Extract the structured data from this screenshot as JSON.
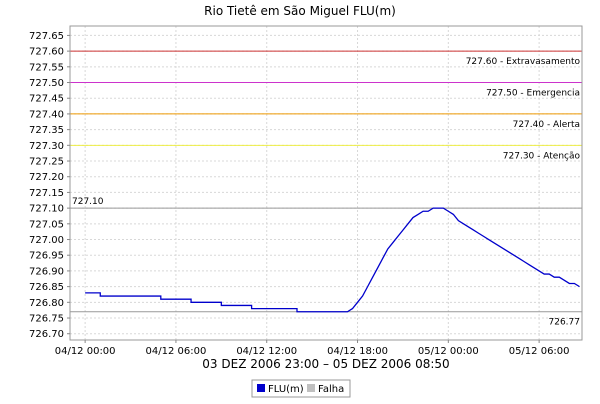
{
  "chart_data": {
    "type": "line",
    "title": "Rio Tietê em São Miguel FLU(m)",
    "xlabel": "03 DEZ 2006 23:00 – 05 DEZ 2006 08:50",
    "ylabel": "",
    "ylim": [
      726.68,
      727.68
    ],
    "yticks": [
      "726.70",
      "726.75",
      "726.80",
      "726.85",
      "726.90",
      "726.95",
      "727.00",
      "727.05",
      "727.10",
      "727.15",
      "727.20",
      "727.25",
      "727.30",
      "727.35",
      "727.40",
      "727.45",
      "727.50",
      "727.55",
      "727.60",
      "727.65"
    ],
    "xlim": [
      "2006-12-03 23:00",
      "2006-12-05 08:50"
    ],
    "xticks": [
      {
        "t": "2006-12-04 00:00",
        "label": "04/12 00:00"
      },
      {
        "t": "2006-12-04 06:00",
        "label": "04/12 06:00"
      },
      {
        "t": "2006-12-04 12:00",
        "label": "04/12 12:00"
      },
      {
        "t": "2006-12-04 18:00",
        "label": "04/12 18:00"
      },
      {
        "t": "2006-12-05 00:00",
        "label": "05/12 00:00"
      },
      {
        "t": "2006-12-05 06:00",
        "label": "05/12 06:00"
      }
    ],
    "grid": true,
    "legend_position": "bottom",
    "legend": [
      {
        "name": "FLU(m)",
        "color": "#0000cc"
      },
      {
        "name": "Falha",
        "color": "#c0c0c0"
      }
    ],
    "thresholds": [
      {
        "value": 727.6,
        "label": "727.60 - Extravasamento",
        "color": "#cc3333"
      },
      {
        "value": 727.5,
        "label": "727.50 - Emergencia",
        "color": "#cc33cc"
      },
      {
        "value": 727.4,
        "label": "727.40 - Alerta",
        "color": "#ee9900"
      },
      {
        "value": 727.3,
        "label": "727.30 - Atenção",
        "color": "#eeee44"
      }
    ],
    "reference_lines": [
      {
        "value": 727.1,
        "label": "727.10",
        "color": "#999999",
        "label_side": "left"
      },
      {
        "value": 726.77,
        "label": "726.77",
        "color": "#999999",
        "label_side": "right"
      }
    ],
    "series": [
      {
        "name": "FLU(m)",
        "color": "#0000cc",
        "points": [
          [
            "2006-12-04 00:00",
            726.83
          ],
          [
            "2006-12-04 01:00",
            726.83
          ],
          [
            "2006-12-04 01:00",
            726.82
          ],
          [
            "2006-12-04 05:00",
            726.82
          ],
          [
            "2006-12-04 05:00",
            726.81
          ],
          [
            "2006-12-04 06:00",
            726.81
          ],
          [
            "2006-12-04 06:00",
            726.81
          ],
          [
            "2006-12-04 07:00",
            726.81
          ],
          [
            "2006-12-04 07:00",
            726.8
          ],
          [
            "2006-12-04 09:00",
            726.8
          ],
          [
            "2006-12-04 09:00",
            726.79
          ],
          [
            "2006-12-04 11:00",
            726.79
          ],
          [
            "2006-12-04 11:00",
            726.78
          ],
          [
            "2006-12-04 14:00",
            726.78
          ],
          [
            "2006-12-04 14:00",
            726.77
          ],
          [
            "2006-12-04 17:20",
            726.77
          ],
          [
            "2006-12-04 17:40",
            726.78
          ],
          [
            "2006-12-04 18:00",
            726.8
          ],
          [
            "2006-12-04 18:20",
            726.82
          ],
          [
            "2006-12-04 18:40",
            726.85
          ],
          [
            "2006-12-04 19:00",
            726.88
          ],
          [
            "2006-12-04 19:20",
            726.91
          ],
          [
            "2006-12-04 19:40",
            726.94
          ],
          [
            "2006-12-04 20:00",
            726.97
          ],
          [
            "2006-12-04 20:20",
            726.99
          ],
          [
            "2006-12-04 20:40",
            727.01
          ],
          [
            "2006-12-04 21:00",
            727.03
          ],
          [
            "2006-12-04 21:20",
            727.05
          ],
          [
            "2006-12-04 21:40",
            727.07
          ],
          [
            "2006-12-04 22:00",
            727.08
          ],
          [
            "2006-12-04 22:20",
            727.09
          ],
          [
            "2006-12-04 22:40",
            727.09
          ],
          [
            "2006-12-04 23:00",
            727.1
          ],
          [
            "2006-12-04 23:20",
            727.1
          ],
          [
            "2006-12-04 23:40",
            727.1
          ],
          [
            "2006-12-05 00:00",
            727.09
          ],
          [
            "2006-12-05 00:20",
            727.08
          ],
          [
            "2006-12-05 00:40",
            727.06
          ],
          [
            "2006-12-05 01:00",
            727.05
          ],
          [
            "2006-12-05 01:20",
            727.04
          ],
          [
            "2006-12-05 01:40",
            727.03
          ],
          [
            "2006-12-05 02:00",
            727.02
          ],
          [
            "2006-12-05 02:20",
            727.01
          ],
          [
            "2006-12-05 02:40",
            727.0
          ],
          [
            "2006-12-05 03:00",
            726.99
          ],
          [
            "2006-12-05 03:20",
            726.98
          ],
          [
            "2006-12-05 03:40",
            726.97
          ],
          [
            "2006-12-05 04:00",
            726.96
          ],
          [
            "2006-12-05 04:20",
            726.95
          ],
          [
            "2006-12-05 04:40",
            726.94
          ],
          [
            "2006-12-05 05:00",
            726.93
          ],
          [
            "2006-12-05 05:20",
            726.92
          ],
          [
            "2006-12-05 05:40",
            726.91
          ],
          [
            "2006-12-05 06:00",
            726.9
          ],
          [
            "2006-12-05 06:20",
            726.89
          ],
          [
            "2006-12-05 06:40",
            726.89
          ],
          [
            "2006-12-05 07:00",
            726.88
          ],
          [
            "2006-12-05 07:20",
            726.88
          ],
          [
            "2006-12-05 07:40",
            726.87
          ],
          [
            "2006-12-05 08:00",
            726.86
          ],
          [
            "2006-12-05 08:20",
            726.86
          ],
          [
            "2006-12-05 08:40",
            726.85
          ]
        ]
      }
    ]
  }
}
